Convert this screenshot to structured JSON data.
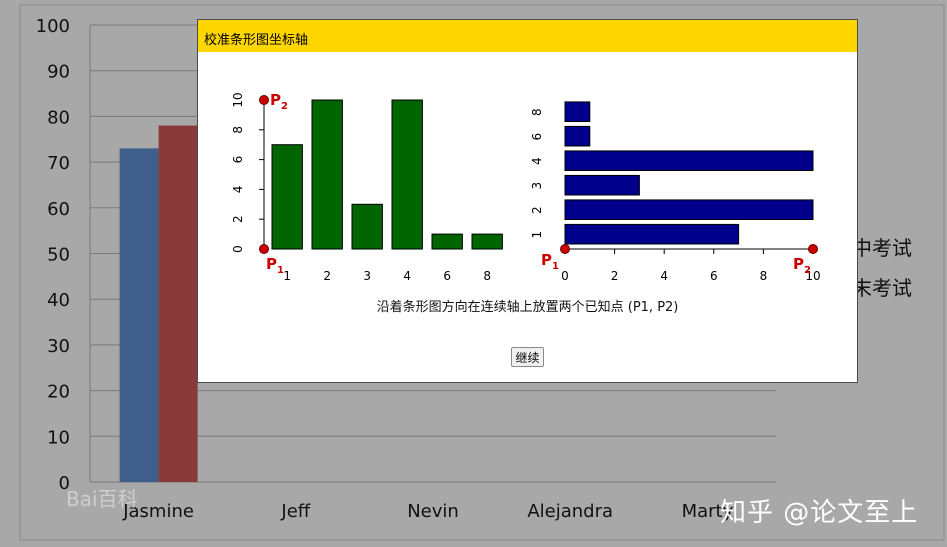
{
  "background_chart": {
    "y_ticks": [
      "100",
      "90",
      "80",
      "70",
      "60",
      "50",
      "40",
      "30",
      "20",
      "10",
      "0"
    ],
    "categories": [
      "Jasmine",
      "Jeff",
      "Nevin",
      "Alejandra",
      "Marty"
    ],
    "series": [
      {
        "name": "期中考试",
        "color": "#3e5f8a",
        "values": [
          73,
          null,
          null,
          null,
          null
        ]
      },
      {
        "name": "期末考试",
        "color": "#8b3a3a",
        "values": [
          78,
          null,
          null,
          null,
          null
        ]
      }
    ],
    "legend_visible": [
      "中考试",
      "末考试"
    ],
    "watermark": "Bai百科"
  },
  "dialog": {
    "title": "校准条形图坐标轴",
    "instruction": "沿着条形图方向在连续轴上放置两个已知点 (P1, P2)",
    "continue_label": "继续"
  },
  "chart_data": [
    {
      "type": "bar",
      "orientation": "vertical",
      "categories": [
        "1",
        "2",
        "3",
        "4",
        "6",
        "8"
      ],
      "values": [
        7,
        10,
        3,
        10,
        1,
        1
      ],
      "ylim": [
        0,
        10
      ],
      "y_ticks": [
        "0",
        "2",
        "4",
        "6",
        "8",
        "10"
      ],
      "color": "#006400",
      "points": {
        "p1": "P1",
        "p2": "P2"
      }
    },
    {
      "type": "bar",
      "orientation": "horizontal",
      "categories": [
        "1",
        "2",
        "3",
        "4",
        "6",
        "8"
      ],
      "values": [
        7,
        10,
        3,
        10,
        1,
        1
      ],
      "xlim": [
        0,
        10
      ],
      "x_ticks": [
        "0",
        "2",
        "4",
        "6",
        "8",
        "10"
      ],
      "color": "#00008b",
      "points": {
        "p1": "P1",
        "p2": "P2"
      }
    }
  ],
  "watermark_zh": "知乎 @论文至上",
  "colors": {
    "title_bar": "#ffd700",
    "marker": "#cc0000"
  }
}
